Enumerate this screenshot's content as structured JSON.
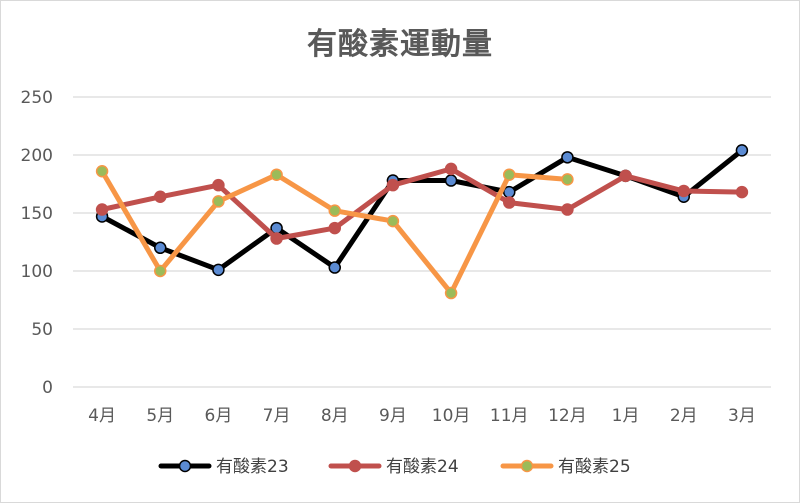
{
  "chart_data": {
    "type": "line",
    "title": "有酸素運動量",
    "categories": [
      "4月",
      "5月",
      "6月",
      "7月",
      "8月",
      "9月",
      "10月",
      "11月",
      "12月",
      "1月",
      "2月",
      "3月"
    ],
    "ylim": [
      0,
      250
    ],
    "yticks": [
      0,
      50,
      100,
      150,
      200,
      250
    ],
    "grid": true,
    "legend_position": "bottom",
    "series": [
      {
        "name": "有酸素23",
        "line_color": "#000000",
        "marker_color": "#5b8bd3",
        "values": [
          147,
          120,
          101,
          137,
          103,
          178,
          178,
          168,
          198,
          182,
          164,
          204
        ]
      },
      {
        "name": "有酸素24",
        "line_color": "#c0504d",
        "marker_color": "#c0504d",
        "values": [
          153,
          164,
          174,
          128,
          137,
          174,
          188,
          159,
          153,
          182,
          169,
          168
        ]
      },
      {
        "name": "有酸素25",
        "line_color": "#f79646",
        "marker_color": "#9bbb59",
        "values": [
          186,
          100,
          160,
          183,
          152,
          143,
          81,
          183,
          179,
          null,
          null,
          null
        ]
      }
    ]
  }
}
